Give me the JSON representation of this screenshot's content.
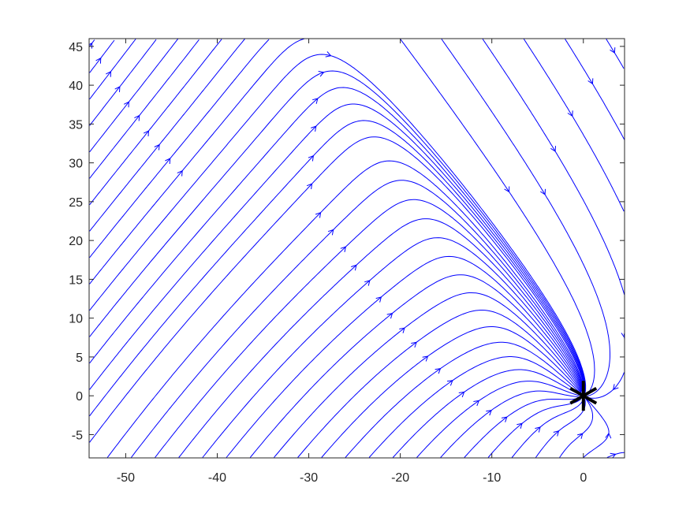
{
  "chart_data": {
    "type": "streamplot",
    "title": "",
    "xlabel": "",
    "ylabel": "",
    "xlim": [
      -54,
      4.5
    ],
    "ylim": [
      -8,
      46
    ],
    "x_ticks": [
      -50,
      -40,
      -30,
      -20,
      -10,
      0
    ],
    "y_ticks": [
      -5,
      0,
      5,
      10,
      15,
      20,
      25,
      30,
      35,
      40,
      45
    ],
    "x_tick_labels": [
      "-50",
      "-40",
      "-30",
      "-20",
      "-10",
      "0"
    ],
    "y_tick_labels": [
      "-5",
      "0",
      "5",
      "10",
      "15",
      "20",
      "25",
      "30",
      "35",
      "40",
      "45"
    ],
    "grid": false,
    "box": true,
    "stream_color": "#0000ff",
    "equilibrium": {
      "x": 0,
      "y": 0,
      "marker": "asterisk",
      "color": "#000000"
    },
    "flow_description": "field lines sweep up-right across the left of the domain, bend over the ridge near x=-24, y=36, and descend down-right to converge on the equilibrium at the origin"
  }
}
